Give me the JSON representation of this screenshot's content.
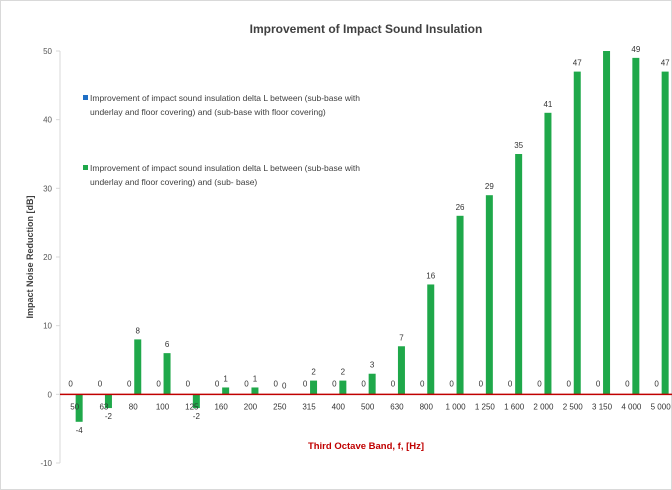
{
  "chart_data": {
    "type": "bar",
    "title": "Improvement of Impact Sound Insulation",
    "xlabel": "Third Octave Band, f, [Hz]",
    "ylabel": "Impact Noise Reduction [dB]",
    "ylim": [
      -10,
      50
    ],
    "yticks": [
      -10,
      0,
      10,
      20,
      30,
      40,
      50
    ],
    "grid": false,
    "legend_position": "top-left",
    "categories": [
      "50",
      "63",
      "80",
      "100",
      "125",
      "160",
      "200",
      "250",
      "315",
      "400",
      "500",
      "630",
      "800",
      "1 000",
      "1 250",
      "1 600",
      "2 000",
      "2 500",
      "3 150",
      "4 000",
      "5 000"
    ],
    "series": [
      {
        "name": "Improvement of impact sound insulation delta L between (sub-base with underlay and floor covering) and (sub-base with floor covering)",
        "color": "#1f6fc5",
        "values": [
          0,
          0,
          0,
          0,
          0,
          0,
          0,
          0,
          0,
          0,
          0,
          0,
          0,
          0,
          0,
          0,
          0,
          0,
          0,
          0,
          0
        ],
        "labels": [
          "0",
          "0",
          "0",
          "0",
          "0",
          "0",
          "0",
          "0",
          "0",
          "0",
          "0",
          "0",
          "0",
          "0",
          "0",
          "0",
          "0",
          "0",
          "0",
          "0",
          "0"
        ]
      },
      {
        "name": "Improvement of impact sound insulation delta L between (sub-base with underlay and floor covering) and (sub- base)",
        "color": "#1fa84a",
        "values": [
          -4,
          -2,
          8,
          6,
          -2,
          1,
          1,
          0,
          2,
          2,
          3,
          7,
          16,
          26,
          29,
          35,
          41,
          47,
          50,
          49,
          47
        ],
        "labels": [
          "-4",
          "-2",
          "8",
          "6",
          "-2",
          "1",
          "1",
          "0",
          "2",
          "2",
          "3",
          "7",
          "16",
          "26",
          "29",
          "35",
          "41",
          "47",
          "",
          "49",
          "47"
        ]
      }
    ],
    "colors": {
      "zero_line": "#c00000",
      "axis": "#d9d9d9"
    }
  }
}
